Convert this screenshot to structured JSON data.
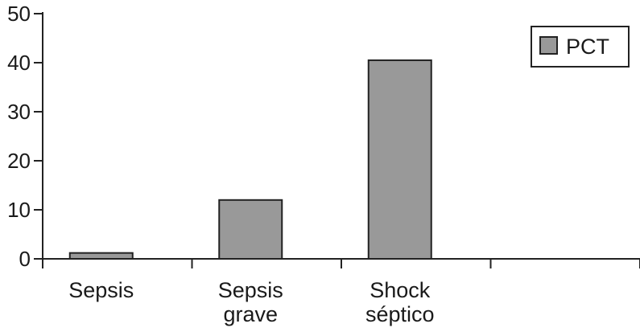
{
  "chart_data": {
    "type": "bar",
    "categories": [
      [
        "Sepsis"
      ],
      [
        "Sepsis",
        "grave"
      ],
      [
        "Shock",
        "séptico"
      ],
      [
        ""
      ]
    ],
    "series": [
      {
        "name": "PCT",
        "values": [
          1.2,
          12,
          40.5,
          null
        ],
        "color": "#999999"
      }
    ],
    "yticks": [
      "0",
      "10",
      "20",
      "30",
      "40",
      "50"
    ],
    "ylim": [
      0,
      50
    ],
    "grid": false,
    "legend": "top-right",
    "title": "",
    "xlabel": "",
    "ylabel": ""
  }
}
